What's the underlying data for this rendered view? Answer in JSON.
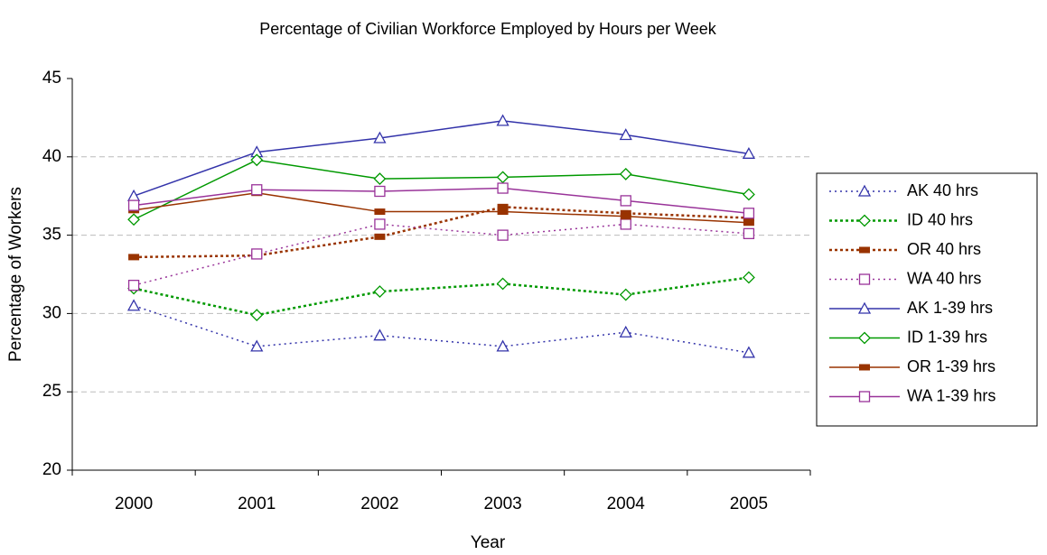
{
  "chart_data": {
    "type": "line",
    "title": "Percentage of Civilian Workforce Employed by Hours per Week",
    "x_label": "Year",
    "y_label": "Percentage of Workers",
    "categories": [
      "2000",
      "2001",
      "2002",
      "2003",
      "2004",
      "2005"
    ],
    "ylim": [
      20,
      45
    ],
    "yticks": [
      20,
      25,
      30,
      35,
      40,
      45
    ],
    "grid": true,
    "legend": "right",
    "series": [
      {
        "name": "AK 40 hrs",
        "color": "#3333aa",
        "line_style": "dotted",
        "marker": "triangle",
        "values": [
          30.5,
          27.9,
          28.6,
          27.9,
          28.8,
          27.5
        ]
      },
      {
        "name": "ID 40 hrs",
        "color": "#009900",
        "line_style": "dotted",
        "marker": "diamond",
        "values": [
          31.6,
          29.9,
          31.4,
          31.9,
          31.2,
          32.3
        ]
      },
      {
        "name": "OR 40 hrs",
        "color": "#993300",
        "line_style": "dotted",
        "marker": "bar",
        "values": [
          33.6,
          33.7,
          34.9,
          36.8,
          36.4,
          36.1
        ]
      },
      {
        "name": "WA 40 hrs",
        "color": "#993399",
        "line_style": "dotted",
        "marker": "square",
        "values": [
          31.8,
          33.8,
          35.7,
          35.0,
          35.7,
          35.1
        ]
      },
      {
        "name": "AK 1-39 hrs",
        "color": "#3333aa",
        "line_style": "solid",
        "marker": "triangle",
        "values": [
          37.5,
          40.3,
          41.2,
          42.3,
          41.4,
          40.2
        ]
      },
      {
        "name": "ID 1-39 hrs",
        "color": "#009900",
        "line_style": "solid",
        "marker": "diamond",
        "values": [
          36.0,
          39.8,
          38.6,
          38.7,
          38.9,
          37.6
        ]
      },
      {
        "name": "OR 1-39 hrs",
        "color": "#993300",
        "line_style": "solid",
        "marker": "bar",
        "values": [
          36.6,
          37.7,
          36.5,
          36.5,
          36.2,
          35.8
        ]
      },
      {
        "name": "WA 1-39 hrs",
        "color": "#993399",
        "line_style": "solid",
        "marker": "square",
        "values": [
          36.9,
          37.9,
          37.8,
          38.0,
          37.2,
          36.4
        ]
      }
    ]
  }
}
